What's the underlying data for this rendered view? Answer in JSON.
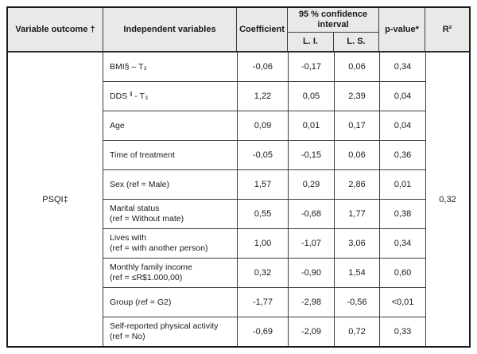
{
  "table": {
    "header": {
      "variable_outcome": "Variable outcome †",
      "independent_variables": "Independent variables",
      "coefficient": "Coefficient",
      "confidence_interval": "95 % confidence interval",
      "lower_limit": "L. I.",
      "upper_limit": "L. S.",
      "p_value": "p-value*",
      "r_squared": "R²"
    },
    "outcome": {
      "label": "PSQI‡",
      "r_squared": "0,32"
    },
    "rows": [
      {
        "label": "BMI§ – T₃",
        "label_sup": "",
        "label_rest": "",
        "sublabel": "",
        "coefficient": "-0,06",
        "li": "-0,17",
        "ls": "0,06",
        "pvalue": "0,34"
      },
      {
        "label": "DDS ",
        "label_sup": "ǁ",
        "label_rest": " - T₃",
        "sublabel": "",
        "coefficient": "1,22",
        "li": "0,05",
        "ls": "2,39",
        "pvalue": "0,04"
      },
      {
        "label": "Age",
        "label_sup": "",
        "label_rest": "",
        "sublabel": "",
        "coefficient": "0,09",
        "li": "0,01",
        "ls": "0,17",
        "pvalue": "0,04"
      },
      {
        "label": "Time of treatment",
        "label_sup": "",
        "label_rest": "",
        "sublabel": "",
        "coefficient": "-0,05",
        "li": "-0,15",
        "ls": "0,06",
        "pvalue": "0,36"
      },
      {
        "label": "Sex (ref = Male)",
        "label_sup": "",
        "label_rest": "",
        "sublabel": "",
        "coefficient": "1,57",
        "li": "0,29",
        "ls": "2,86",
        "pvalue": "0,01"
      },
      {
        "label": "Marital status",
        "label_sup": "",
        "label_rest": "",
        "sublabel": "(ref = Without mate)",
        "coefficient": "0,55",
        "li": "-0,68",
        "ls": "1,77",
        "pvalue": "0,38"
      },
      {
        "label": "Lives with",
        "label_sup": "",
        "label_rest": "",
        "sublabel": "(ref = with another person)",
        "coefficient": "1,00",
        "li": "-1,07",
        "ls": "3,06",
        "pvalue": "0,34"
      },
      {
        "label": "Monthly family income",
        "label_sup": "",
        "label_rest": "",
        "sublabel": "(ref = ≤R$1.000,00)",
        "coefficient": "0,32",
        "li": "-0,90",
        "ls": "1,54",
        "pvalue": "0,60"
      },
      {
        "label": "Group (ref = G2)",
        "label_sup": "",
        "label_rest": "",
        "sublabel": "",
        "coefficient": "-1,77",
        "li": "-2,98",
        "ls": "-0,56",
        "pvalue": "<0,01"
      },
      {
        "label": "Self-reported physical activity",
        "label_sup": "",
        "label_rest": "",
        "sublabel": "(ref = No)",
        "coefficient": "-0,69",
        "li": "-2,09",
        "ls": "0,72",
        "pvalue": "0,33"
      }
    ],
    "colors": {
      "header_bg": "#e9e9e8",
      "outer_border": "#1c1c1c",
      "grid": "#3c3c3c"
    }
  }
}
